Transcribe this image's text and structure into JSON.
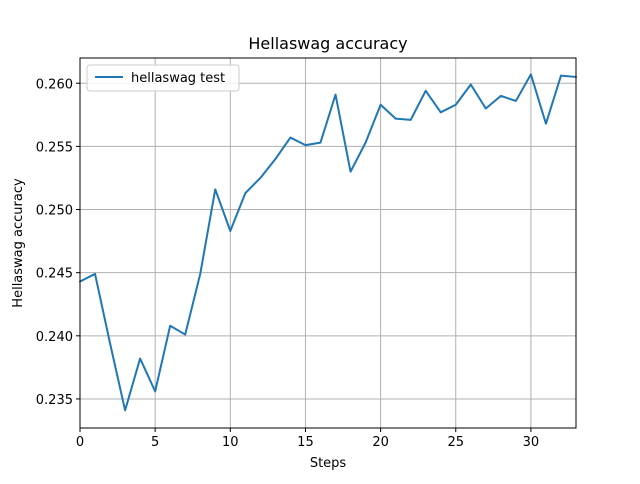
{
  "chart_data": {
    "type": "line",
    "title": "Hellaswag accuracy",
    "xlabel": "Steps",
    "ylabel": "Hellaswag accuracy",
    "xlim": [
      0,
      33
    ],
    "ylim": [
      0.2327,
      0.262
    ],
    "grid": true,
    "legend_position": "upper-left",
    "x_ticks": [
      0,
      5,
      10,
      15,
      20,
      25,
      30
    ],
    "x_tick_labels": [
      "0",
      "5",
      "10",
      "15",
      "20",
      "25",
      "30"
    ],
    "y_ticks": [
      0.235,
      0.24,
      0.245,
      0.25,
      0.255,
      0.26
    ],
    "y_tick_labels": [
      "0.235",
      "0.240",
      "0.245",
      "0.250",
      "0.255",
      "0.260"
    ],
    "series": [
      {
        "name": "hellaswag test",
        "color": "#1f77b4",
        "x": [
          0,
          1,
          2,
          3,
          4,
          5,
          6,
          7,
          8,
          9,
          10,
          11,
          12,
          13,
          14,
          15,
          16,
          17,
          18,
          19,
          20,
          21,
          22,
          23,
          24,
          25,
          26,
          27,
          28,
          29,
          30,
          31,
          32,
          33
        ],
        "values": [
          0.2443,
          0.2449,
          0.2394,
          0.2341,
          0.2382,
          0.2356,
          0.2408,
          0.2401,
          0.2449,
          0.2516,
          0.2483,
          0.2513,
          0.2525,
          0.254,
          0.2557,
          0.2551,
          0.2553,
          0.2591,
          0.253,
          0.2553,
          0.2583,
          0.2572,
          0.2571,
          0.2594,
          0.2577,
          0.2583,
          0.2599,
          0.258,
          0.259,
          0.2586,
          0.2607,
          0.2568,
          0.2606,
          0.2605
        ]
      }
    ]
  }
}
